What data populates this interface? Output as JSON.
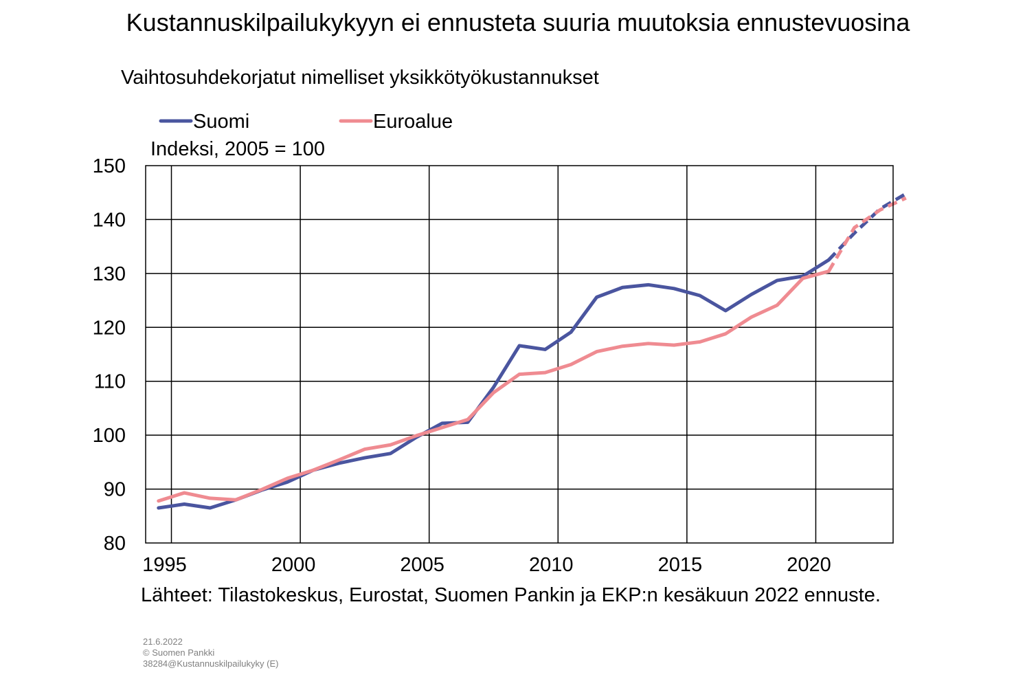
{
  "title": "Kustannuskilpailukykyyn ei ennusteta suuria muutoksia ennustevuosina",
  "subtitle": "Vaihtosuhdekorjatut nimelliset yksikkötyökustannukset",
  "unit_label": "Indeksi, 2005 = 100",
  "source": "Lähteet: Tilastokeskus, Eurostat, Suomen Pankin ja EKP:n kesäkuun 2022 ennuste.",
  "footer": {
    "date": "21.6.2022",
    "copyright": "© Suomen Pankki",
    "code": "38284@Kustannuskilpailukyky (E)"
  },
  "chart_data": {
    "type": "line",
    "xlabel": "",
    "ylabel": "",
    "xlim": [
      1994.5,
      2023.5
    ],
    "ylim": [
      80,
      150
    ],
    "yticks": [
      80,
      90,
      100,
      110,
      120,
      130,
      140,
      150
    ],
    "xtick_labels": [
      "1995",
      "2000",
      "2005",
      "2010",
      "2015",
      "2020"
    ],
    "grid": true,
    "legend_position": "top",
    "forecast_from": 2021,
    "x": [
      1995,
      1996,
      1997,
      1998,
      1999,
      2000,
      2001,
      2002,
      2003,
      2004,
      2005,
      2006,
      2007,
      2008,
      2009,
      2010,
      2011,
      2012,
      2013,
      2014,
      2015,
      2016,
      2017,
      2018,
      2019,
      2020,
      2021,
      2022,
      2023,
      2024
    ],
    "series": [
      {
        "name": "Suomi",
        "color": "#4a559f",
        "values": [
          86.5,
          87.2,
          86.5,
          88.0,
          89.8,
          91.3,
          93.5,
          94.8,
          95.8,
          96.6,
          99.6,
          102.2,
          102.4,
          108.9,
          116.6,
          115.9,
          119.1,
          125.6,
          127.4,
          127.9,
          127.2,
          125.9,
          123.1,
          126.1,
          128.7,
          129.5,
          132.5,
          137.5,
          142.0,
          144.8
        ]
      },
      {
        "name": "Euroalue",
        "color": "#ef8b91",
        "values": [
          87.8,
          89.3,
          88.3,
          88.0,
          89.9,
          92.0,
          93.5,
          95.4,
          97.4,
          98.2,
          99.9,
          101.4,
          102.9,
          107.9,
          111.3,
          111.6,
          113.1,
          115.5,
          116.5,
          117.0,
          116.7,
          117.3,
          118.8,
          121.9,
          124.1,
          129.1,
          130.4,
          138.5,
          141.8,
          144.0
        ]
      }
    ]
  }
}
